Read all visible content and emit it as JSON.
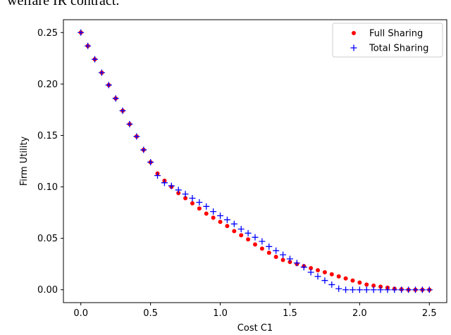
{
  "page": {
    "top_text": "welfare IR contract."
  },
  "chart_data": {
    "type": "scatter",
    "title": "",
    "xlabel": "Cost C1",
    "ylabel": "Firm Utility",
    "xlim": [
      -0.125,
      2.625
    ],
    "ylim": [
      -0.0125,
      0.2625
    ],
    "xticks": [
      "0.0",
      "0.5",
      "1.0",
      "1.5",
      "2.0",
      "2.5"
    ],
    "yticks": [
      "0.00",
      "0.05",
      "0.10",
      "0.15",
      "0.20",
      "0.25"
    ],
    "legend_position": "top-right",
    "grid": false,
    "series": [
      {
        "name": "Full Sharing",
        "marker": "dot",
        "color": "#ff0000",
        "x": [
          0.0,
          0.05,
          0.1,
          0.15,
          0.2,
          0.25,
          0.3,
          0.35,
          0.4,
          0.45,
          0.5,
          0.55,
          0.6,
          0.65,
          0.7,
          0.75,
          0.8,
          0.85,
          0.9,
          0.95,
          1.0,
          1.05,
          1.1,
          1.15,
          1.2,
          1.25,
          1.3,
          1.35,
          1.4,
          1.45,
          1.5,
          1.55,
          1.6,
          1.65,
          1.7,
          1.75,
          1.8,
          1.85,
          1.9,
          1.95,
          2.0,
          2.05,
          2.1,
          2.15,
          2.2,
          2.25,
          2.3,
          2.35,
          2.4,
          2.45,
          2.5
        ],
        "y": [
          0.25,
          0.237,
          0.224,
          0.211,
          0.199,
          0.186,
          0.174,
          0.161,
          0.149,
          0.136,
          0.124,
          0.113,
          0.106,
          0.1,
          0.094,
          0.089,
          0.084,
          0.079,
          0.074,
          0.07,
          0.066,
          0.062,
          0.057,
          0.053,
          0.049,
          0.044,
          0.04,
          0.036,
          0.032,
          0.029,
          0.027,
          0.025,
          0.023,
          0.021,
          0.019,
          0.017,
          0.015,
          0.013,
          0.011,
          0.009,
          0.007,
          0.005,
          0.004,
          0.003,
          0.002,
          0.001,
          0.0005,
          0.0,
          0.0,
          0.0,
          0.0
        ]
      },
      {
        "name": "Total Sharing",
        "marker": "plus",
        "color": "#0000ff",
        "x": [
          0.0,
          0.05,
          0.1,
          0.15,
          0.2,
          0.25,
          0.3,
          0.35,
          0.4,
          0.45,
          0.5,
          0.55,
          0.6,
          0.65,
          0.7,
          0.75,
          0.8,
          0.85,
          0.9,
          0.95,
          1.0,
          1.05,
          1.1,
          1.15,
          1.2,
          1.25,
          1.3,
          1.35,
          1.4,
          1.45,
          1.5,
          1.55,
          1.6,
          1.65,
          1.7,
          1.75,
          1.8,
          1.85,
          1.9,
          1.95,
          2.0,
          2.05,
          2.1,
          2.15,
          2.2,
          2.25,
          2.3,
          2.35,
          2.4,
          2.45,
          2.5
        ],
        "y": [
          0.25,
          0.237,
          0.224,
          0.211,
          0.199,
          0.186,
          0.174,
          0.161,
          0.149,
          0.136,
          0.124,
          0.111,
          0.104,
          0.101,
          0.097,
          0.093,
          0.089,
          0.085,
          0.081,
          0.076,
          0.072,
          0.068,
          0.064,
          0.059,
          0.055,
          0.051,
          0.047,
          0.042,
          0.038,
          0.034,
          0.03,
          0.026,
          0.022,
          0.017,
          0.013,
          0.009,
          0.005,
          0.001,
          0.0,
          0.0,
          0.0,
          0.0,
          0.0,
          0.0,
          0.0,
          0.0,
          0.0,
          0.0,
          0.0,
          0.0,
          0.0
        ]
      }
    ]
  }
}
